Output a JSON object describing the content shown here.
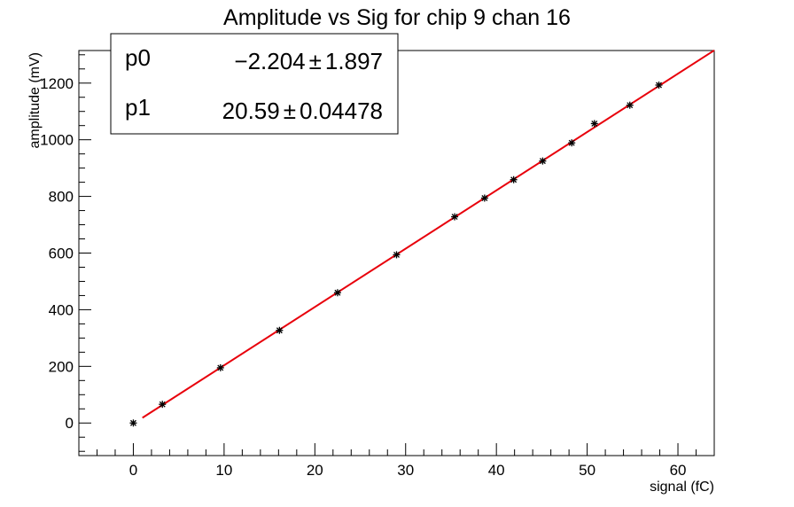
{
  "chart_data": {
    "type": "scatter",
    "title": "Amplitude vs Sig for chip 9 chan 16",
    "xlabel": "signal (fC)",
    "ylabel": "amplitude (mV)",
    "xlim": [
      -6,
      64
    ],
    "ylim": [
      -115,
      1315
    ],
    "x_ticks": [
      0,
      10,
      20,
      30,
      40,
      50,
      60
    ],
    "y_ticks": [
      0,
      200,
      400,
      600,
      800,
      1000,
      1200
    ],
    "grid": false,
    "points": {
      "marker": "asterisk",
      "color": "#000000",
      "x": [
        0,
        3.2,
        9.6,
        16.1,
        22.5,
        29.0,
        35.4,
        38.7,
        41.9,
        45.1,
        48.3,
        50.8,
        54.7,
        57.9
      ],
      "y": [
        0,
        66,
        195,
        327,
        460,
        594,
        728,
        794,
        859,
        925,
        989,
        1057,
        1122,
        1193
      ]
    },
    "fit": {
      "color": "#e8000b",
      "x_range": [
        1.0,
        64
      ],
      "p0": -2.204,
      "p1": 20.59
    },
    "stats_box": {
      "rows": [
        {
          "name": "p0",
          "value": "−2.204",
          "pm": "±",
          "error": "1.897"
        },
        {
          "name": "p1",
          "value": "20.59",
          "pm": "±",
          "error": "0.04478"
        }
      ]
    }
  }
}
